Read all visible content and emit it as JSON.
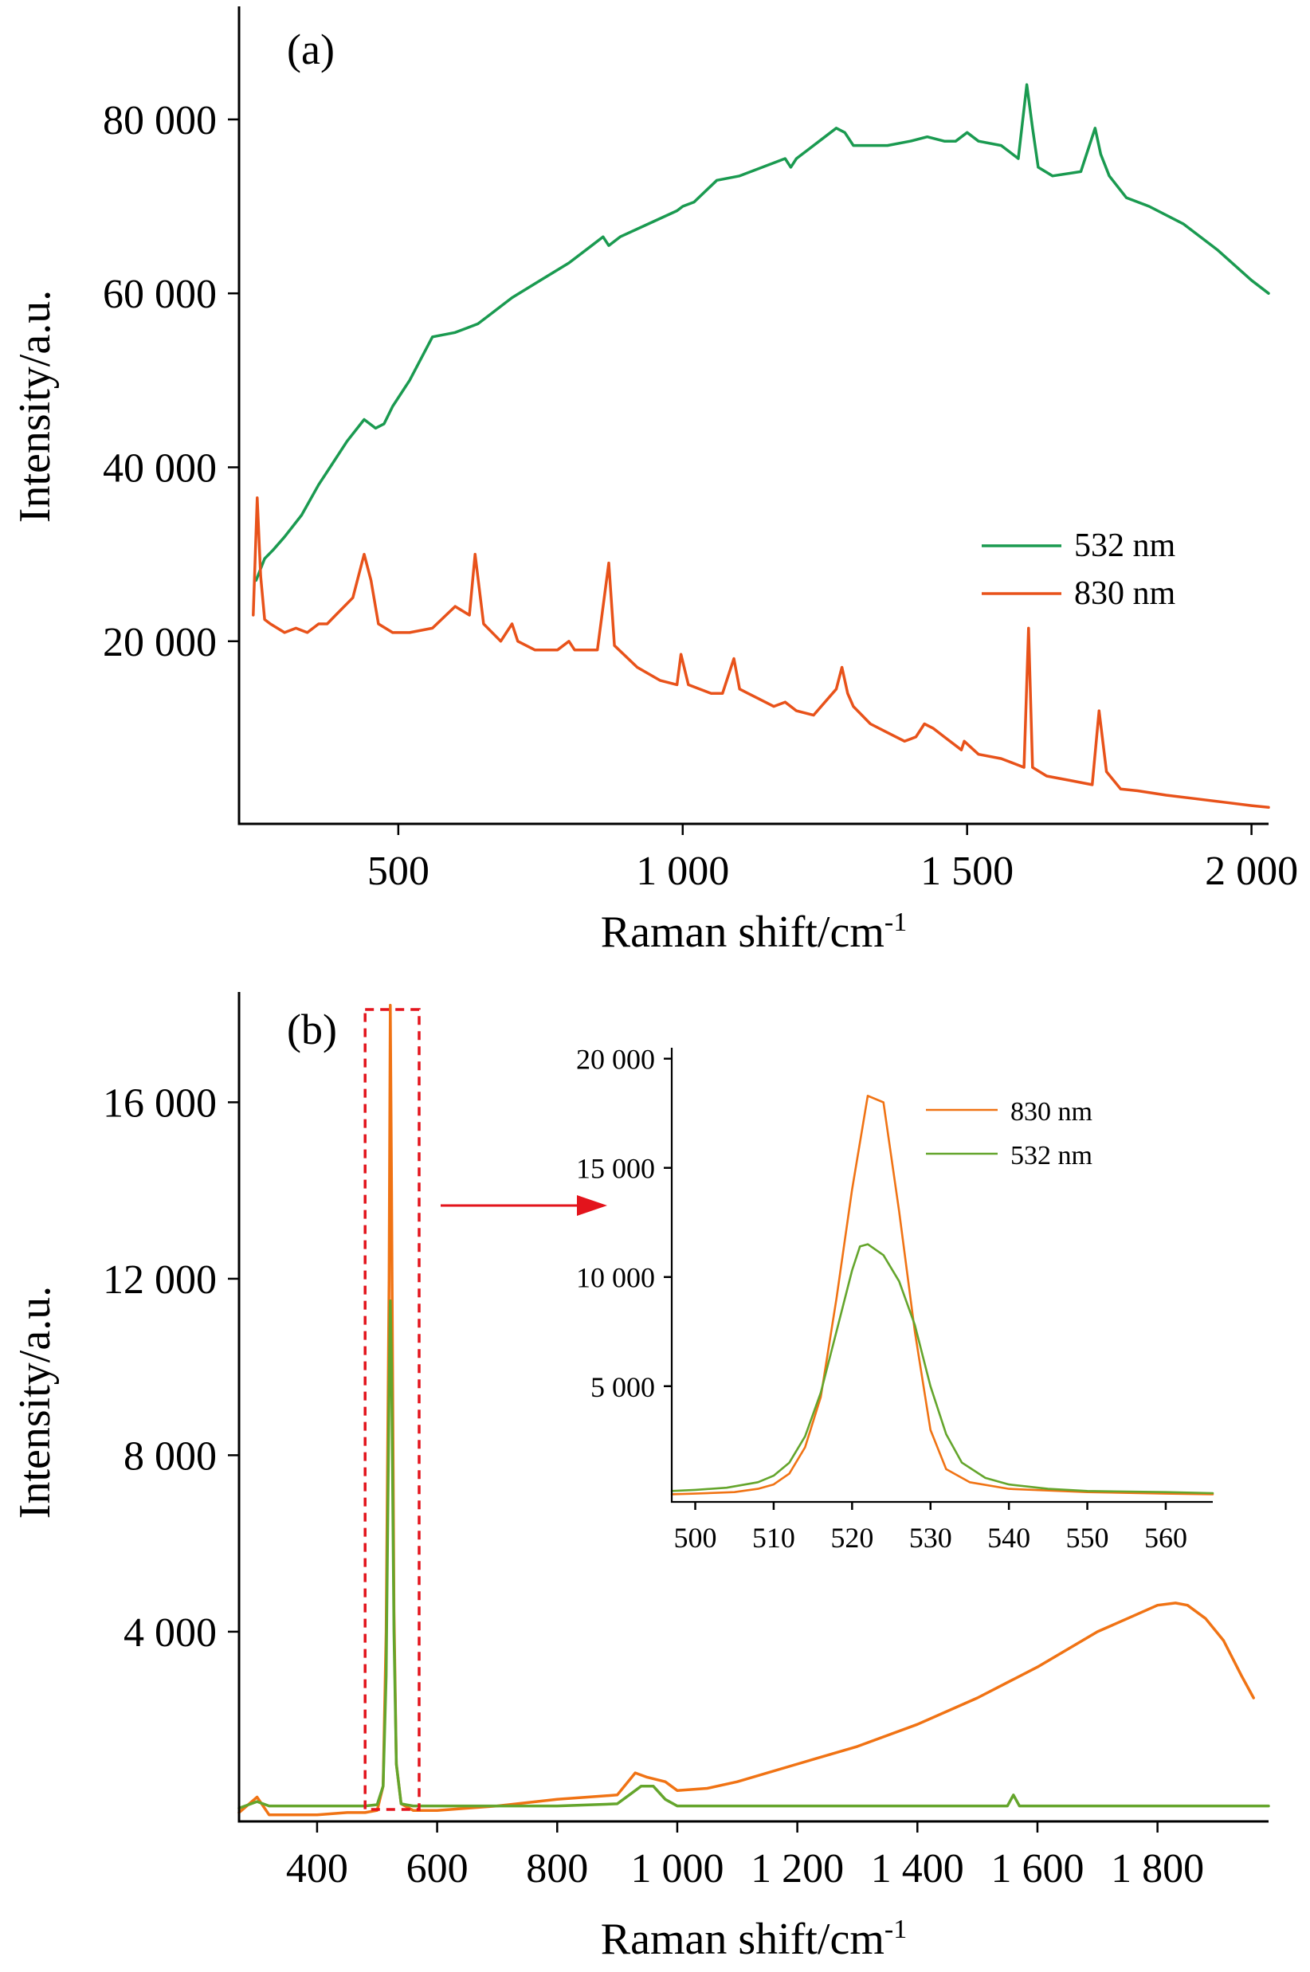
{
  "chart_data": [
    {
      "panel": "(a)",
      "type": "line",
      "xlabel": "Raman shift/cm",
      "xlabel_sup": "-1",
      "ylabel": "Intensity/a.u.",
      "xlim": [
        220,
        2030
      ],
      "ylim": [
        -1000,
        93000
      ],
      "xticks": [
        500,
        1000,
        1500,
        2000
      ],
      "xtick_labels": [
        "500",
        "1 000",
        "1 500",
        "2 000"
      ],
      "yticks": [
        20000,
        40000,
        60000,
        80000
      ],
      "ytick_labels": [
        "20 000",
        "40 000",
        "60 000",
        "80 000"
      ],
      "legend_position": "middle-right",
      "series": [
        {
          "name": "532 nm",
          "color": "#1a9a50",
          "x": [
            250,
            265,
            280,
            300,
            330,
            360,
            380,
            410,
            440,
            460,
            475,
            490,
            520,
            560,
            600,
            620,
            640,
            660,
            700,
            750,
            800,
            840,
            860,
            870,
            890,
            940,
            990,
            1000,
            1020,
            1060,
            1100,
            1140,
            1180,
            1190,
            1200,
            1240,
            1270,
            1285,
            1300,
            1320,
            1360,
            1400,
            1430,
            1460,
            1480,
            1500,
            1520,
            1560,
            1590,
            1605,
            1615,
            1625,
            1650,
            1700,
            1725,
            1735,
            1750,
            1780,
            1820,
            1880,
            1940,
            2000,
            2030
          ],
          "y": [
            27000,
            29500,
            30500,
            32000,
            34500,
            38000,
            40000,
            43000,
            45500,
            44500,
            45000,
            47000,
            50000,
            55000,
            55500,
            56000,
            56500,
            57500,
            59500,
            61500,
            63500,
            65500,
            66500,
            65500,
            66500,
            68000,
            69500,
            70000,
            70500,
            73000,
            73500,
            74500,
            75500,
            74500,
            75500,
            77500,
            79000,
            78500,
            77000,
            77000,
            77000,
            77500,
            78000,
            77500,
            77500,
            78500,
            77500,
            77000,
            75500,
            84000,
            79000,
            74500,
            73500,
            74000,
            79000,
            76000,
            73500,
            71000,
            70000,
            68000,
            65000,
            61500,
            60000
          ]
        },
        {
          "name": "830 nm",
          "color": "#e8521a",
          "x": [
            245,
            252,
            258,
            265,
            275,
            300,
            320,
            340,
            360,
            375,
            390,
            420,
            440,
            452,
            465,
            490,
            520,
            560,
            600,
            625,
            635,
            650,
            680,
            700,
            710,
            740,
            780,
            800,
            810,
            850,
            870,
            880,
            920,
            960,
            990,
            997,
            1010,
            1050,
            1070,
            1090,
            1100,
            1115,
            1130,
            1160,
            1180,
            1200,
            1230,
            1270,
            1280,
            1290,
            1300,
            1330,
            1360,
            1390,
            1410,
            1425,
            1440,
            1460,
            1490,
            1495,
            1520,
            1560,
            1600,
            1608,
            1615,
            1640,
            1680,
            1720,
            1732,
            1745,
            1770,
            1800,
            1850,
            1900,
            1950,
            2000,
            2030
          ],
          "y": [
            23000,
            36500,
            27500,
            22500,
            22000,
            21000,
            21500,
            21000,
            22000,
            22000,
            23000,
            25000,
            30000,
            27000,
            22000,
            21000,
            21000,
            21500,
            24000,
            23000,
            30000,
            22000,
            20000,
            22000,
            20000,
            19000,
            19000,
            20000,
            19000,
            19000,
            29000,
            19500,
            17000,
            15500,
            15000,
            18500,
            15000,
            14000,
            14000,
            18000,
            14500,
            14000,
            13500,
            12500,
            13000,
            12000,
            11500,
            14500,
            17000,
            14000,
            12500,
            10500,
            9500,
            8500,
            9000,
            10500,
            10000,
            9000,
            7500,
            8500,
            7000,
            6500,
            5500,
            21500,
            5500,
            4500,
            4000,
            3500,
            12000,
            5000,
            3000,
            2800,
            2300,
            1900,
            1500,
            1100,
            900
          ]
        }
      ]
    },
    {
      "panel": "(b)",
      "type": "line",
      "xlabel": "Raman shift/cm",
      "xlabel_sup": "-1",
      "ylabel": "Intensity/a.u.",
      "xlim": [
        270,
        1985
      ],
      "ylim": [
        -300,
        18500
      ],
      "xticks": [
        400,
        600,
        800,
        1000,
        1200,
        1400,
        1600,
        1800
      ],
      "xtick_labels": [
        "400",
        "600",
        "800",
        "1 000",
        "1 200",
        "1 400",
        "1 600",
        "1 800"
      ],
      "yticks": [
        4000,
        8000,
        12000,
        16000
      ],
      "ytick_labels": [
        "4 000",
        "8 000",
        "12 000",
        "16 000"
      ],
      "highlight_box_x": [
        480,
        570
      ],
      "series": [
        {
          "name": "830 nm",
          "color": "#f07314",
          "x": [
            270,
            300,
            320,
            350,
            400,
            450,
            480,
            500,
            510,
            515,
            520,
            522,
            524,
            528,
            532,
            540,
            560,
            600,
            700,
            800,
            900,
            930,
            950,
            980,
            1000,
            1050,
            1100,
            1200,
            1300,
            1400,
            1500,
            1600,
            1700,
            1750,
            1800,
            1830,
            1850,
            1880,
            1910,
            1940,
            1960
          ],
          "y": [
            -100,
            250,
            -150,
            -150,
            -150,
            -100,
            -100,
            -50,
            500,
            4000,
            12000,
            18200,
            14000,
            4500,
            1000,
            100,
            -50,
            -50,
            50,
            200,
            300,
            800,
            700,
            600,
            400,
            450,
            600,
            1000,
            1400,
            1900,
            2500,
            3200,
            4000,
            4300,
            4600,
            4650,
            4600,
            4300,
            3800,
            3000,
            2500
          ]
        },
        {
          "name": "532 nm",
          "color": "#64a52c",
          "x": [
            270,
            300,
            320,
            350,
            400,
            450,
            480,
            500,
            510,
            515,
            520,
            522,
            524,
            528,
            532,
            540,
            560,
            600,
            700,
            800,
            900,
            920,
            940,
            960,
            980,
            1000,
            1050,
            1100,
            1200,
            1300,
            1400,
            1500,
            1550,
            1560,
            1570,
            1600,
            1700,
            1800,
            1900,
            1985
          ],
          "y": [
            0,
            150,
            50,
            50,
            50,
            50,
            50,
            80,
            500,
            3000,
            9500,
            11500,
            10000,
            4000,
            1000,
            100,
            50,
            50,
            50,
            50,
            100,
            300,
            500,
            500,
            200,
            50,
            50,
            50,
            50,
            50,
            50,
            50,
            50,
            300,
            50,
            50,
            50,
            50,
            50,
            50
          ]
        }
      ],
      "inset": {
        "type": "line",
        "xlim": [
          497,
          566
        ],
        "ylim": [
          -300,
          20500
        ],
        "xticks": [
          500,
          510,
          520,
          530,
          540,
          550,
          560
        ],
        "xtick_labels": [
          "500",
          "510",
          "520",
          "530",
          "540",
          "550",
          "560"
        ],
        "yticks": [
          5000,
          10000,
          15000,
          20000
        ],
        "ytick_labels": [
          "5 000",
          "10 000",
          "15 000",
          "20 000"
        ],
        "series": [
          {
            "name": "830 nm",
            "color": "#f07314",
            "x": [
              497,
              500,
              505,
              508,
              510,
              512,
              514,
              516,
              518,
              520,
              522,
              524,
              526,
              528,
              530,
              532,
              535,
              540,
              550,
              560,
              566
            ],
            "y": [
              50,
              80,
              150,
              300,
              500,
              1000,
              2200,
              4500,
              9000,
              14000,
              18300,
              18000,
              13000,
              7500,
              3000,
              1200,
              600,
              300,
              150,
              80,
              50
            ]
          },
          {
            "name": "532 nm",
            "color": "#64a52c",
            "x": [
              497,
              500,
              504,
              508,
              510,
              512,
              514,
              516,
              518,
              520,
              521,
              522,
              524,
              526,
              528,
              530,
              532,
              534,
              537,
              540,
              545,
              550,
              560,
              566
            ],
            "y": [
              200,
              250,
              350,
              600,
              900,
              1500,
              2700,
              4700,
              7500,
              10300,
              11400,
              11500,
              11000,
              9800,
              7800,
              5000,
              2800,
              1500,
              800,
              500,
              300,
              200,
              150,
              100
            ]
          }
        ]
      }
    }
  ]
}
